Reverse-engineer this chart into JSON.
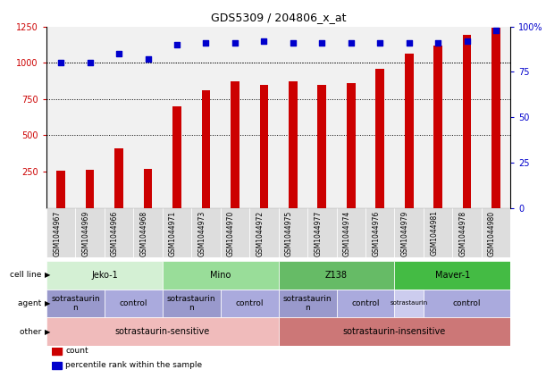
{
  "title": "GDS5309 / 204806_x_at",
  "samples": [
    "GSM1044967",
    "GSM1044969",
    "GSM1044966",
    "GSM1044968",
    "GSM1044971",
    "GSM1044973",
    "GSM1044970",
    "GSM1044972",
    "GSM1044975",
    "GSM1044977",
    "GSM1044974",
    "GSM1044976",
    "GSM1044979",
    "GSM1044981",
    "GSM1044978",
    "GSM1044980"
  ],
  "counts": [
    255,
    260,
    410,
    270,
    700,
    810,
    870,
    850,
    870,
    850,
    860,
    960,
    1060,
    1120,
    1190,
    1240
  ],
  "percentiles": [
    80,
    80,
    85,
    82,
    90,
    91,
    91,
    92,
    91,
    91,
    91,
    91,
    91,
    91,
    92,
    98
  ],
  "bar_color": "#cc0000",
  "dot_color": "#0000cc",
  "ylim_left": [
    0,
    1250
  ],
  "ylim_right": [
    0,
    100
  ],
  "yticks_left": [
    250,
    500,
    750,
    1000,
    1250
  ],
  "yticks_right": [
    0,
    25,
    50,
    75,
    100
  ],
  "grid_values": [
    500,
    750,
    1000
  ],
  "cell_lines": [
    {
      "label": "Jeko-1",
      "start": 0,
      "end": 4,
      "color": "#d4f0d4"
    },
    {
      "label": "Mino",
      "start": 4,
      "end": 8,
      "color": "#99dd99"
    },
    {
      "label": "Z138",
      "start": 8,
      "end": 12,
      "color": "#66bb66"
    },
    {
      "label": "Maver-1",
      "start": 12,
      "end": 16,
      "color": "#44bb44"
    }
  ],
  "agents": [
    {
      "label": "sotrastaurin\nn",
      "start": 0,
      "end": 2,
      "color": "#9999cc"
    },
    {
      "label": "control",
      "start": 2,
      "end": 4,
      "color": "#aaaadd"
    },
    {
      "label": "sotrastaurin\nn",
      "start": 4,
      "end": 6,
      "color": "#9999cc"
    },
    {
      "label": "control",
      "start": 6,
      "end": 8,
      "color": "#aaaadd"
    },
    {
      "label": "sotrastaurin\nn",
      "start": 8,
      "end": 10,
      "color": "#9999cc"
    },
    {
      "label": "control",
      "start": 10,
      "end": 12,
      "color": "#aaaadd"
    },
    {
      "label": "sotrastaurin",
      "start": 12,
      "end": 13,
      "color": "#ccccee"
    },
    {
      "label": "control",
      "start": 13,
      "end": 16,
      "color": "#aaaadd"
    }
  ],
  "others": [
    {
      "label": "sotrastaurin-sensitive",
      "start": 0,
      "end": 8,
      "color": "#f0bbbb"
    },
    {
      "label": "sotrastaurin-insensitive",
      "start": 8,
      "end": 16,
      "color": "#cc7777"
    }
  ],
  "row_labels": [
    "cell line",
    "agent",
    "other"
  ],
  "legend_items": [
    {
      "label": "count",
      "color": "#cc0000"
    },
    {
      "label": "percentile rank within the sample",
      "color": "#0000cc"
    }
  ],
  "col_bg": "#dddddd",
  "chart_bg": "#ffffff"
}
